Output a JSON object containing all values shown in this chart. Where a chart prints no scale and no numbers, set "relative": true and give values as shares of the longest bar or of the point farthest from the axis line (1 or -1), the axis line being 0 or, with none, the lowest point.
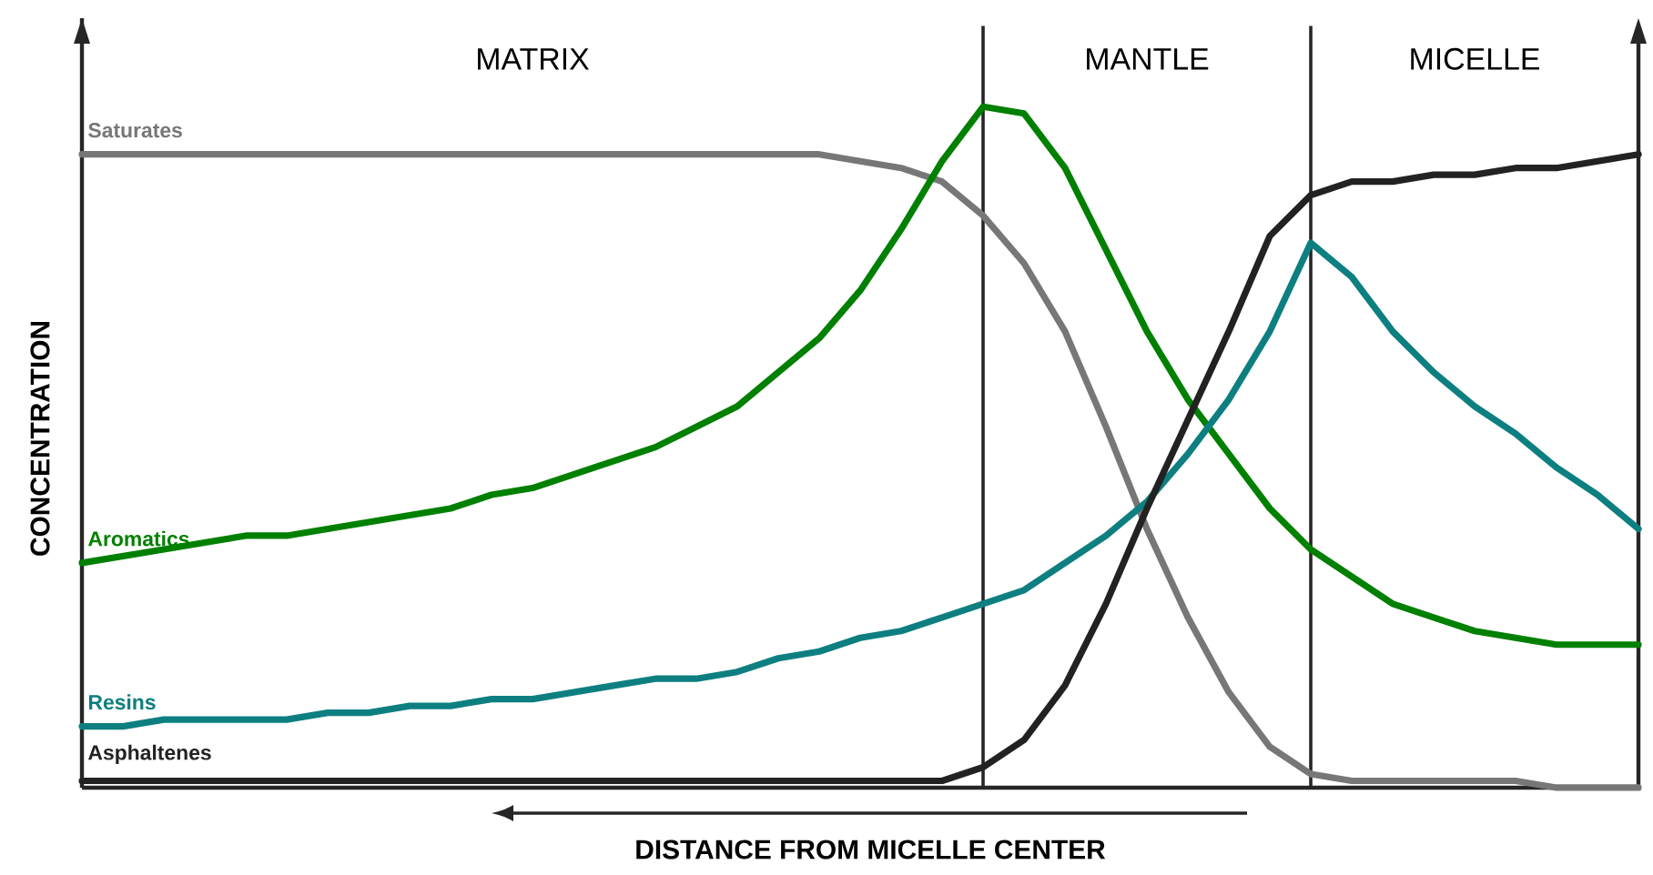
{
  "chart_data": {
    "type": "line",
    "relative": true,
    "xlabel": "DISTANCE FROM MICELLE CENTER",
    "ylabel": "CONCENTRATION",
    "annotations": [
      "MATRIX",
      "MANTLE",
      "MICELLE"
    ],
    "marker": "none",
    "line_style": "solid",
    "categories": [
      null,
      null,
      null,
      null,
      null,
      null,
      null,
      null,
      null,
      null,
      null,
      null,
      null,
      null,
      null,
      null,
      null,
      null,
      null,
      null,
      null,
      null,
      null,
      null,
      null,
      null,
      null,
      null,
      null,
      null,
      null,
      null,
      null,
      null,
      null,
      null,
      null,
      null,
      null
    ],
    "series": [
      {
        "name": "Saturates",
        "color": "#777777",
        "values": [
          0.93,
          0.93,
          0.93,
          0.93,
          0.93,
          0.93,
          0.93,
          0.93,
          0.93,
          0.93,
          0.93,
          0.93,
          0.93,
          0.93,
          0.93,
          0.93,
          0.93,
          0.93,
          0.93,
          0.92,
          0.91,
          0.89,
          0.84,
          0.77,
          0.67,
          0.53,
          0.38,
          0.25,
          0.14,
          0.06,
          0.02,
          0.01,
          0.01,
          0.01,
          0.01,
          0.01,
          0,
          0,
          0
        ]
      },
      {
        "name": "Aromatics",
        "color": "#008000",
        "values": [
          0.33,
          0.34,
          0.35,
          0.36,
          0.37,
          0.37,
          0.38,
          0.39,
          0.4,
          0.41,
          0.43,
          0.44,
          0.46,
          0.48,
          0.5,
          0.53,
          0.56,
          0.61,
          0.66,
          0.73,
          0.82,
          0.92,
          1,
          0.99,
          0.91,
          0.79,
          0.67,
          0.57,
          0.49,
          0.41,
          0.35,
          0.31,
          0.27,
          0.25,
          0.23,
          0.22,
          0.21,
          0.21,
          0.21
        ]
      },
      {
        "name": "Resins",
        "color": "#0e7f80",
        "values": [
          0.09,
          0.09,
          0.1,
          0.1,
          0.1,
          0.1,
          0.11,
          0.11,
          0.12,
          0.12,
          0.13,
          0.13,
          0.14,
          0.15,
          0.16,
          0.16,
          0.17,
          0.19,
          0.2,
          0.22,
          0.23,
          0.25,
          0.27,
          0.29,
          0.33,
          0.37,
          0.42,
          0.49,
          0.57,
          0.67,
          0.8,
          0.75,
          0.67,
          0.61,
          0.56,
          0.52,
          0.47,
          0.43,
          0.38
        ]
      },
      {
        "name": "Asphaltenes",
        "color": "#222222",
        "values": [
          0.01,
          0.01,
          0.01,
          0.01,
          0.01,
          0.01,
          0.01,
          0.01,
          0.01,
          0.01,
          0.01,
          0.01,
          0.01,
          0.01,
          0.01,
          0.01,
          0.01,
          0.01,
          0.01,
          0.01,
          0.01,
          0.01,
          0.03,
          0.07,
          0.15,
          0.27,
          0.41,
          0.54,
          0.67,
          0.81,
          0.87,
          0.89,
          0.89,
          0.9,
          0.9,
          0.91,
          0.91,
          0.92,
          0.93
        ]
      }
    ]
  }
}
